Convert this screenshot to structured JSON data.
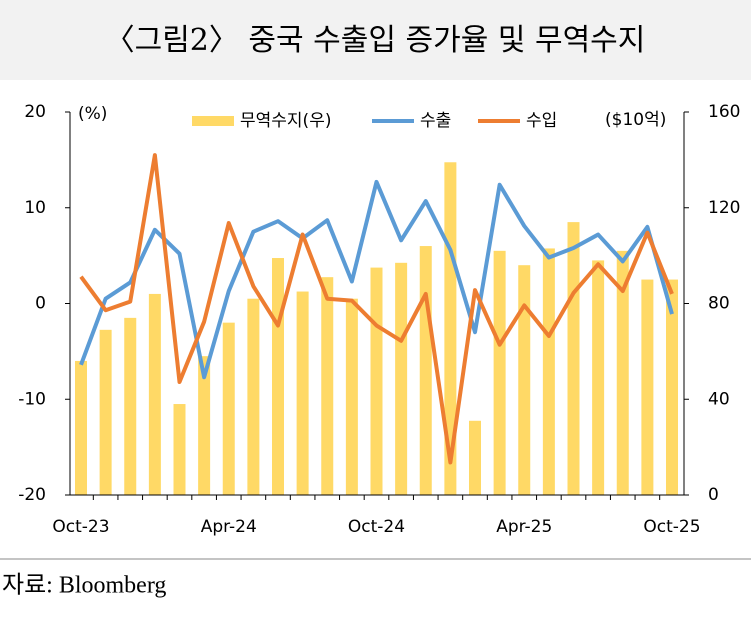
{
  "header": {
    "title": "〈그림2〉 중국 수출입 증가율 및 무역수지"
  },
  "chart_data": {
    "type": "combo",
    "categories": [
      "Oct-23",
      null,
      null,
      null,
      null,
      null,
      "Apr-24",
      null,
      null,
      null,
      null,
      null,
      "Oct-24",
      null,
      null,
      null,
      null,
      null,
      "Apr-25",
      null,
      null,
      null,
      null,
      null,
      "Oct-25"
    ],
    "y_label": "(%)",
    "y2_label": "($10억)",
    "ylim": [
      -20,
      20
    ],
    "yticks": [
      -20,
      -10,
      0,
      10,
      20
    ],
    "y2lim": [
      0,
      160
    ],
    "y2ticks": [
      0,
      40,
      80,
      120,
      160
    ],
    "grid": false,
    "legend": "top",
    "series": [
      {
        "name": "무역수지(우)",
        "type": "bar",
        "axis": "y2",
        "color": "#ffd966",
        "values": [
          56,
          69,
          74,
          84,
          38,
          58,
          72,
          82,
          99,
          85,
          91,
          82,
          95,
          97,
          104,
          139,
          31,
          102,
          96,
          103,
          114,
          98,
          102,
          90,
          90
        ]
      },
      {
        "name": "수출",
        "type": "line",
        "color": "#5b9bd5",
        "values": [
          -6.4,
          0.5,
          2.2,
          7.7,
          5.2,
          -7.7,
          1.3,
          7.5,
          8.6,
          6.8,
          8.7,
          2.3,
          12.7,
          6.6,
          10.7,
          5.6,
          -3.0,
          12.4,
          8.1,
          4.8,
          5.8,
          7.2,
          4.4,
          8.0,
          -1.1
        ]
      },
      {
        "name": "수입",
        "type": "line",
        "color": "#ed7d31",
        "values": [
          2.8,
          -0.7,
          0.2,
          15.5,
          -8.2,
          -1.9,
          8.4,
          1.8,
          -2.3,
          7.2,
          0.5,
          0.3,
          -2.3,
          -3.9,
          1.0,
          -16.6,
          1.4,
          -4.3,
          -0.2,
          -3.4,
          1.1,
          4.1,
          1.3,
          7.4,
          1.0
        ]
      }
    ]
  },
  "footer": {
    "source": "자료: Bloomberg"
  }
}
